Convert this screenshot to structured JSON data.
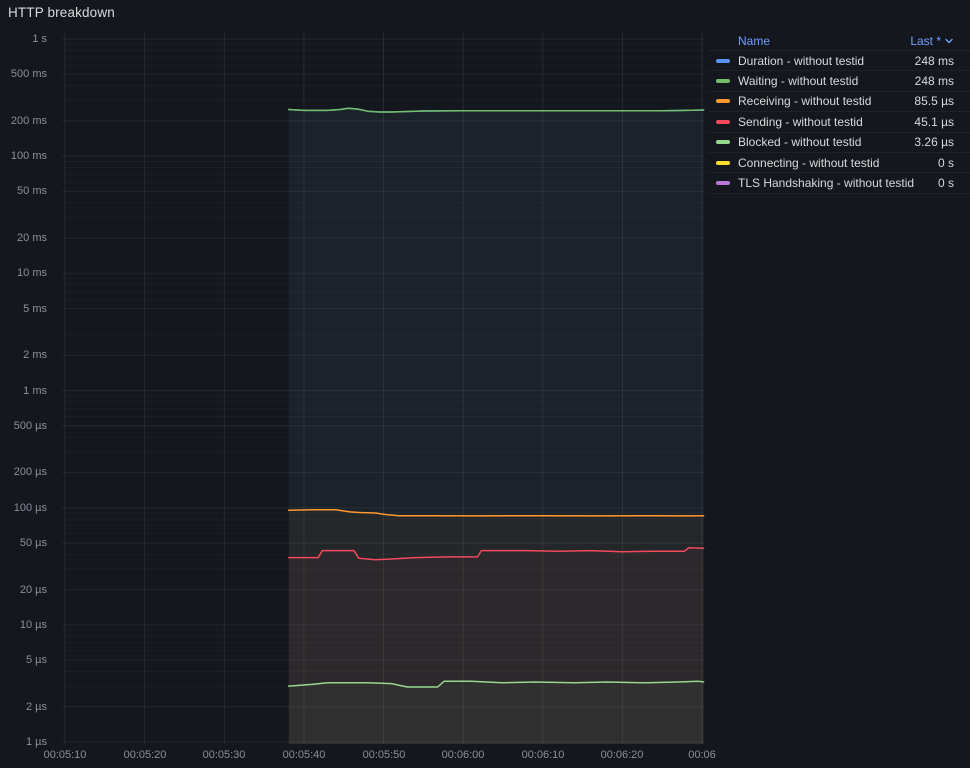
{
  "panel": {
    "title": "HTTP breakdown"
  },
  "legend": {
    "columns": {
      "name": "Name",
      "last": "Last *",
      "sort_icon": "chevron-down"
    },
    "rows": [
      {
        "label": "Duration - without testid",
        "value": "248 ms",
        "color": "#5794F2"
      },
      {
        "label": "Waiting - without testid",
        "value": "248 ms",
        "color": "#73BF69"
      },
      {
        "label": "Receiving - without testid",
        "value": "85.5 µs",
        "color": "#FF9830"
      },
      {
        "label": "Sending - without testid",
        "value": "45.1 µs",
        "color": "#F2495C"
      },
      {
        "label": "Blocked - without testid",
        "value": "3.26 µs",
        "color": "#96D98D"
      },
      {
        "label": "Connecting - without testid",
        "value": "0 s",
        "color": "#FADE2A"
      },
      {
        "label": "TLS Handshaking - without testid",
        "value": "0 s",
        "color": "#B877D9"
      }
    ]
  },
  "chart_data": {
    "type": "line",
    "title": "HTTP breakdown",
    "legend_position": "right-table",
    "grid": true,
    "fill_opacity": 0.045,
    "x_axis": {
      "unit": "time",
      "domain_seconds": [
        310,
        390.2
      ],
      "data_start_seconds": 338.1,
      "ticks": [
        {
          "t": 310,
          "label": "00:05:10"
        },
        {
          "t": 320,
          "label": "00:05:20"
        },
        {
          "t": 330,
          "label": "00:05:30"
        },
        {
          "t": 340,
          "label": "00:05:40"
        },
        {
          "t": 350,
          "label": "00:05:50"
        },
        {
          "t": 360,
          "label": "00:06:00"
        },
        {
          "t": 370,
          "label": "00:06:10"
        },
        {
          "t": 380,
          "label": "00:06:20"
        },
        {
          "t": 390,
          "label": "00:06"
        }
      ]
    },
    "y_axis": {
      "scale": "log10",
      "unit": "seconds",
      "range": [
        1e-06,
        1
      ],
      "ticks": [
        {
          "v": 1,
          "label": "1 s"
        },
        {
          "v": 0.5,
          "label": "500 ms"
        },
        {
          "v": 0.2,
          "label": "200 ms"
        },
        {
          "v": 0.1,
          "label": "100 ms"
        },
        {
          "v": 0.05,
          "label": "50 ms"
        },
        {
          "v": 0.02,
          "label": "20 ms"
        },
        {
          "v": 0.01,
          "label": "10 ms"
        },
        {
          "v": 0.005,
          "label": "5 ms"
        },
        {
          "v": 0.002,
          "label": "2 ms"
        },
        {
          "v": 0.001,
          "label": "1 ms"
        },
        {
          "v": 0.0005,
          "label": "500 µs"
        },
        {
          "v": 0.0002,
          "label": "200 µs"
        },
        {
          "v": 0.0001,
          "label": "100 µs"
        },
        {
          "v": 5e-05,
          "label": "50 µs"
        },
        {
          "v": 2e-05,
          "label": "20 µs"
        },
        {
          "v": 1e-05,
          "label": "10 µs"
        },
        {
          "v": 5e-06,
          "label": "5 µs"
        },
        {
          "v": 2e-06,
          "label": "2 µs"
        },
        {
          "v": 1e-06,
          "label": "1 µs"
        }
      ]
    },
    "series": [
      {
        "name": "Duration - without testid",
        "color": "#5794F2",
        "last": "248 ms",
        "points": [
          [
            338.1,
            0.25
          ],
          [
            340,
            0.246
          ],
          [
            343,
            0.246
          ],
          [
            344.5,
            0.25
          ],
          [
            345.6,
            0.256
          ],
          [
            346.8,
            0.252
          ],
          [
            348,
            0.242
          ],
          [
            349.5,
            0.238
          ],
          [
            351,
            0.238
          ],
          [
            352.5,
            0.24
          ],
          [
            355,
            0.243
          ],
          [
            360,
            0.244
          ],
          [
            370,
            0.244
          ],
          [
            380,
            0.244
          ],
          [
            385,
            0.244
          ],
          [
            388,
            0.246
          ],
          [
            390.2,
            0.248
          ]
        ]
      },
      {
        "name": "Waiting - without testid",
        "color": "#73BF69",
        "last": "248 ms",
        "points": [
          [
            338.1,
            0.25
          ],
          [
            340,
            0.246
          ],
          [
            343,
            0.246
          ],
          [
            344.5,
            0.25
          ],
          [
            345.6,
            0.256
          ],
          [
            346.8,
            0.252
          ],
          [
            348,
            0.242
          ],
          [
            349.5,
            0.238
          ],
          [
            351,
            0.238
          ],
          [
            352.5,
            0.24
          ],
          [
            355,
            0.243
          ],
          [
            360,
            0.244
          ],
          [
            370,
            0.244
          ],
          [
            380,
            0.244
          ],
          [
            385,
            0.244
          ],
          [
            388,
            0.246
          ],
          [
            390.2,
            0.248
          ]
        ]
      },
      {
        "name": "Receiving - without testid",
        "color": "#FF9830",
        "last": "85.5 µs",
        "points": [
          [
            338.1,
            9.5e-05
          ],
          [
            341,
            9.6e-05
          ],
          [
            344,
            9.6e-05
          ],
          [
            345.8,
            9.2e-05
          ],
          [
            347,
            9.1e-05
          ],
          [
            349,
            9e-05
          ],
          [
            350.5,
            8.7e-05
          ],
          [
            352,
            8.55e-05
          ],
          [
            356,
            8.55e-05
          ],
          [
            362,
            8.5e-05
          ],
          [
            370,
            8.55e-05
          ],
          [
            378,
            8.5e-05
          ],
          [
            384,
            8.55e-05
          ],
          [
            388,
            8.5e-05
          ],
          [
            390.2,
            8.55e-05
          ]
        ]
      },
      {
        "name": "Sending - without testid",
        "color": "#F2495C",
        "last": "45.1 µs",
        "points": [
          [
            338.1,
            3.75e-05
          ],
          [
            341.8,
            3.75e-05
          ],
          [
            342.3,
            4.3e-05
          ],
          [
            346.3,
            4.3e-05
          ],
          [
            346.9,
            3.7e-05
          ],
          [
            349,
            3.6e-05
          ],
          [
            351,
            3.65e-05
          ],
          [
            354,
            3.75e-05
          ],
          [
            358,
            3.8e-05
          ],
          [
            361.8,
            3.8e-05
          ],
          [
            362.3,
            4.3e-05
          ],
          [
            368,
            4.3e-05
          ],
          [
            372,
            4.25e-05
          ],
          [
            376,
            4.3e-05
          ],
          [
            380,
            4.2e-05
          ],
          [
            384,
            4.25e-05
          ],
          [
            387.8,
            4.25e-05
          ],
          [
            388.3,
            4.55e-05
          ],
          [
            390.2,
            4.51e-05
          ]
        ]
      },
      {
        "name": "Blocked - without testid",
        "color": "#96D98D",
        "last": "3.26 µs",
        "points": [
          [
            338.1,
            3e-06
          ],
          [
            341,
            3.1e-06
          ],
          [
            343,
            3.2e-06
          ],
          [
            348,
            3.2e-06
          ],
          [
            351,
            3.15e-06
          ],
          [
            353,
            2.95e-06
          ],
          [
            356.8,
            2.95e-06
          ],
          [
            357.6,
            3.3e-06
          ],
          [
            361,
            3.3e-06
          ],
          [
            365,
            3.2e-06
          ],
          [
            369,
            3.25e-06
          ],
          [
            374,
            3.2e-06
          ],
          [
            378,
            3.25e-06
          ],
          [
            383,
            3.2e-06
          ],
          [
            387,
            3.25e-06
          ],
          [
            389.5,
            3.3e-06
          ],
          [
            390.2,
            3.26e-06
          ]
        ]
      },
      {
        "name": "Connecting - without testid",
        "color": "#FADE2A",
        "last": "0 s",
        "points": []
      },
      {
        "name": "TLS Handshaking - without testid",
        "color": "#B877D9",
        "last": "0 s",
        "points": []
      }
    ]
  }
}
